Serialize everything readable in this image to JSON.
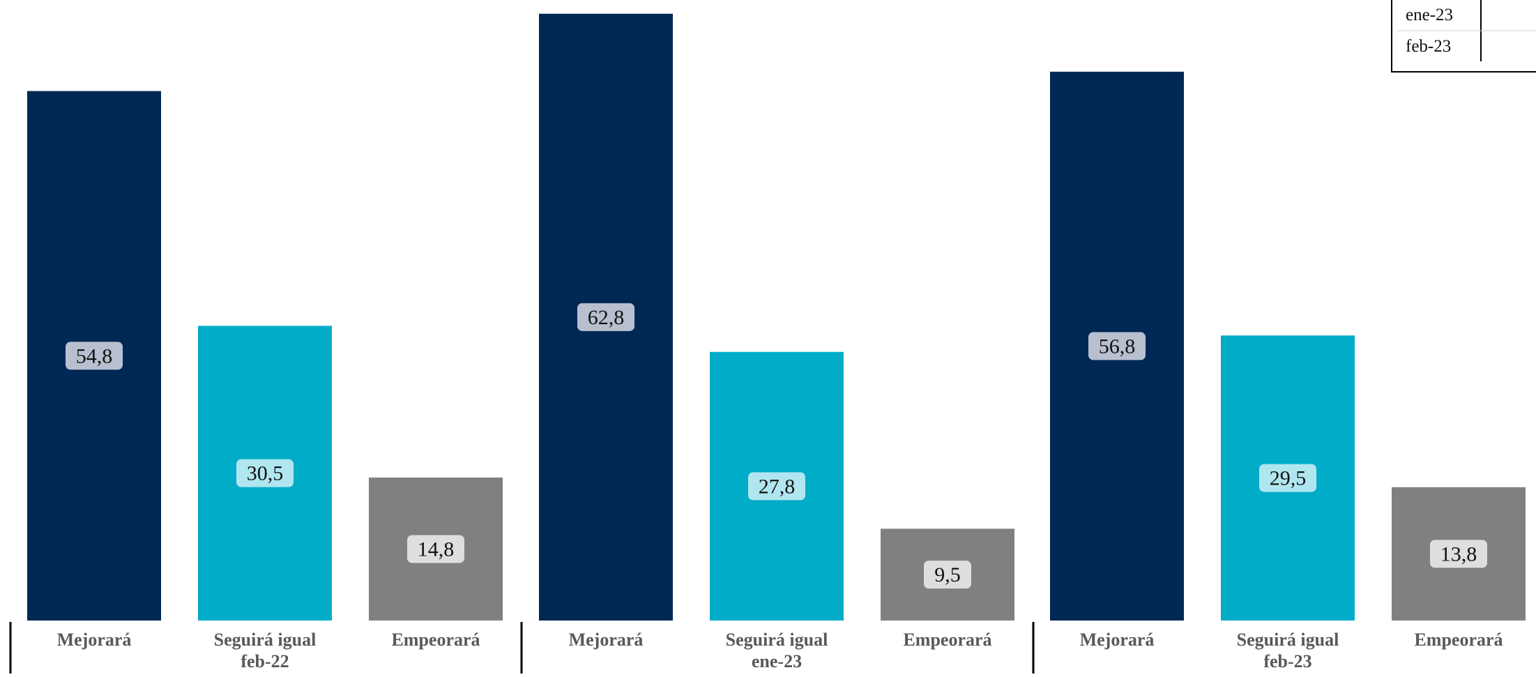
{
  "chart_data": {
    "type": "bar",
    "groups": [
      "feb-22",
      "ene-23",
      "feb-23"
    ],
    "categories": [
      "Mejorará",
      "Seguirá igual",
      "Empeorará"
    ],
    "values": [
      [
        54.8,
        30.5,
        14.8
      ],
      [
        62.8,
        27.8,
        9.5
      ],
      [
        56.8,
        29.5,
        13.8
      ]
    ],
    "value_labels": [
      [
        "54,8",
        "30,5",
        "14,8"
      ],
      [
        "62,8",
        "27,8",
        "9,5"
      ],
      [
        "56,8",
        "29,5",
        "13,8"
      ]
    ],
    "category_colors": [
      "#002855",
      "#00acc8",
      "#808080"
    ],
    "label_box_colors": [
      "#b8c0cf",
      "#b0e6f0",
      "#dedede"
    ],
    "legend": [
      "ene-23",
      "feb-23"
    ],
    "ylim": [
      0,
      63.5
    ]
  }
}
